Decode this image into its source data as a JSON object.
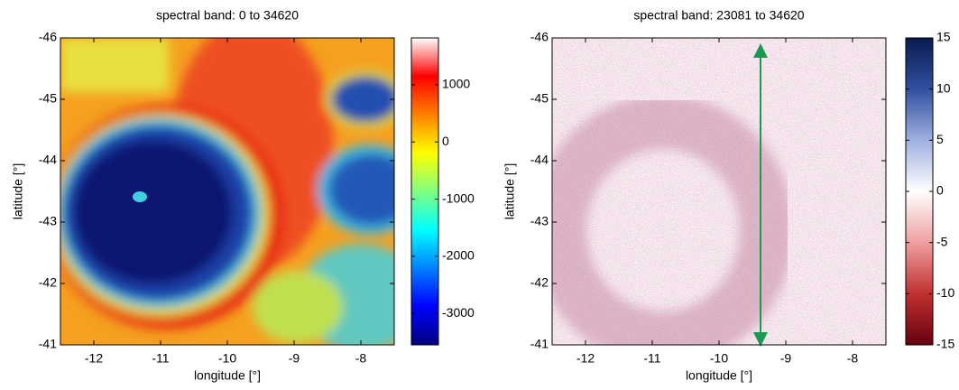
{
  "chart_data": [
    {
      "type": "heatmap",
      "title": "spectral band: 0 to 34620",
      "xlabel": "longitude [°]",
      "ylabel": "latitude [°]",
      "xlim": [
        -12.5,
        -7.5
      ],
      "xticks": [
        -12,
        -11,
        -10,
        -9,
        -8
      ],
      "ylim": [
        -46,
        -41
      ],
      "yticks": [
        -46,
        -45,
        -44,
        -43,
        -42,
        -41
      ],
      "invert_yaxis": true,
      "clim": [
        -3550,
        1820
      ],
      "cticks": [
        -3000,
        -2000,
        -1000,
        0,
        1000
      ],
      "colormap": [
        "#00007f",
        "#0000ff",
        "#0080ff",
        "#00ffff",
        "#80ff80",
        "#ffff00",
        "#ff8000",
        "#ff0000",
        "#ffffff"
      ]
    },
    {
      "type": "heatmap",
      "title": "spectral band: 23081 to 34620",
      "xlabel": "longitude [°]",
      "ylabel": "latitude [°]",
      "xlim": [
        -12.5,
        -7.5
      ],
      "xticks": [
        -12,
        -11,
        -10,
        -9,
        -8
      ],
      "ylim": [
        -46,
        -41
      ],
      "yticks": [
        -46,
        -45,
        -44,
        -43,
        -42,
        -41
      ],
      "invert_yaxis": true,
      "clim": [
        -15,
        15
      ],
      "cticks": [
        -15,
        -10,
        -5,
        0,
        5,
        10,
        15
      ],
      "colormap": [
        "#670010",
        "#c03030",
        "#f0a0a0",
        "#ffffff",
        "#a0b0e0",
        "#3050a0",
        "#0a1a50"
      ]
    }
  ]
}
